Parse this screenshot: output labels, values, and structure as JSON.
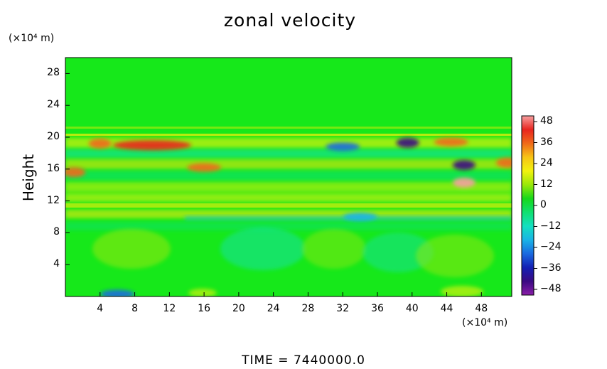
{
  "chart_data": {
    "type": "heatmap",
    "title": "zonal velocity",
    "ylabel": "Height",
    "yunit": "(×10⁴ m)",
    "xunit": "(×10⁴ m)",
    "xlim": [
      0,
      51.5
    ],
    "ylim": [
      0,
      30
    ],
    "xticks": [
      "4",
      "8",
      "12",
      "16",
      "20",
      "24",
      "28",
      "32",
      "36",
      "40",
      "44",
      "48"
    ],
    "yticks": [
      "28",
      "24",
      "20",
      "16",
      "12",
      "8",
      "4"
    ],
    "colorbar": {
      "range": [
        -48,
        48
      ],
      "ticks": [
        "48",
        "36",
        "24",
        "12",
        "0",
        "−12",
        "−24",
        "−36",
        "−48"
      ],
      "colors": [
        "#f7a0a0",
        "#e8251f",
        "#f06a1a",
        "#f7c415",
        "#f2f20e",
        "#99e80a",
        "#16d81a",
        "#0fe070",
        "#14e0c0",
        "#1ab4e6",
        "#1a6ae0",
        "#1420b4",
        "#3a0a82",
        "#8a1ea8"
      ]
    },
    "features": [
      {
        "x": 10,
        "y": 19,
        "value": 40
      },
      {
        "x": 4,
        "y": 19.2,
        "value": 36
      },
      {
        "x": 16,
        "y": 16.2,
        "value": 32
      },
      {
        "x": 1,
        "y": 15.6,
        "value": 36
      },
      {
        "x": 46,
        "y": 14.3,
        "value": 46
      },
      {
        "x": 51,
        "y": 16.8,
        "value": 36
      },
      {
        "x": 44.5,
        "y": 19.4,
        "value": 32
      },
      {
        "x": 39.5,
        "y": 19.3,
        "value": -40
      },
      {
        "x": 46,
        "y": 16.5,
        "value": -44
      },
      {
        "x": 32,
        "y": 18.8,
        "value": -24
      },
      {
        "x": 34,
        "y": 10,
        "value": -20
      },
      {
        "x": 6,
        "y": 0.3,
        "value": -24
      }
    ]
  },
  "footer": "TIME  =  7440000.0"
}
